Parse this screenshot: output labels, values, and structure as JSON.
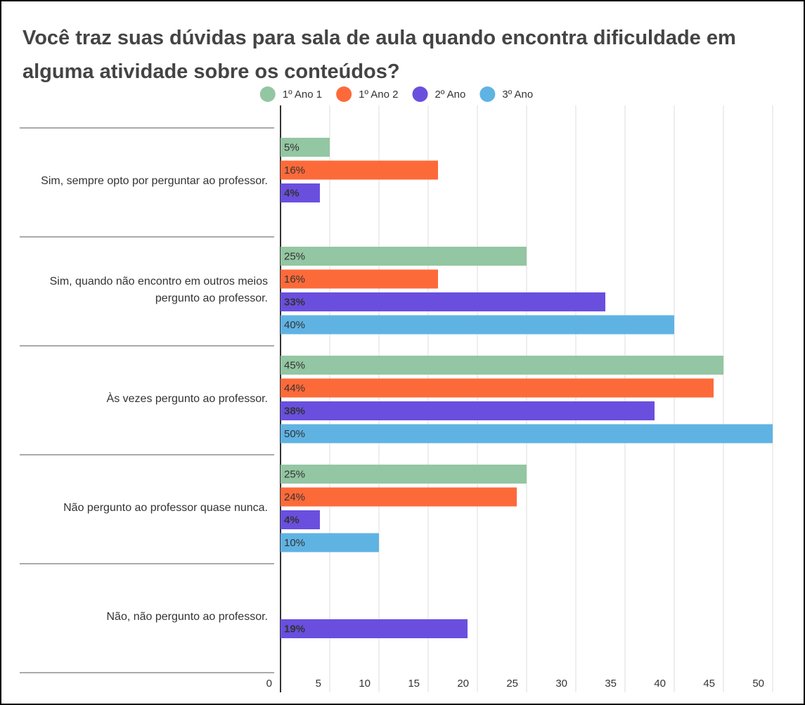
{
  "chart_data": {
    "type": "bar",
    "orientation": "horizontal",
    "title": "Você traz suas dúvidas para sala de aula quando encontra dificuldade em alguma atividade sobre os conteúdos?",
    "categories": [
      "Sim, sempre opto por perguntar ao professor.",
      "Sim, quando não encontro em outros meios pergunto ao professor.",
      "Às vezes pergunto ao professor.",
      "Não pergunto ao professor quase nunca.",
      "Não, não pergunto ao professor."
    ],
    "series": [
      {
        "name": "1º Ano 1",
        "color": "#93c6a2",
        "values": [
          5,
          25,
          45,
          25,
          null
        ],
        "value_labels": [
          "5%",
          "25%",
          "45%",
          "25%",
          null
        ]
      },
      {
        "name": "1º Ano 2",
        "color": "#fd6a3a",
        "values": [
          16,
          16,
          44,
          24,
          null
        ],
        "value_labels": [
          "16%",
          "16%",
          "44%",
          "24%",
          null
        ]
      },
      {
        "name": "2º Ano",
        "color": "#6a4fdf",
        "values": [
          4,
          33,
          38,
          4,
          19
        ],
        "value_labels": [
          "4%",
          "33%",
          "38%",
          "4%",
          "19%"
        ]
      },
      {
        "name": "3º Ano",
        "color": "#5fb3e3",
        "values": [
          null,
          40,
          50,
          10,
          null
        ],
        "value_labels": [
          null,
          "40%",
          "50%",
          "10%",
          null
        ]
      }
    ],
    "xlim": [
      0,
      50
    ],
    "xticks": [
      0,
      5,
      10,
      15,
      20,
      25,
      30,
      35,
      40,
      45,
      50
    ],
    "grid": true,
    "legend": "top"
  }
}
